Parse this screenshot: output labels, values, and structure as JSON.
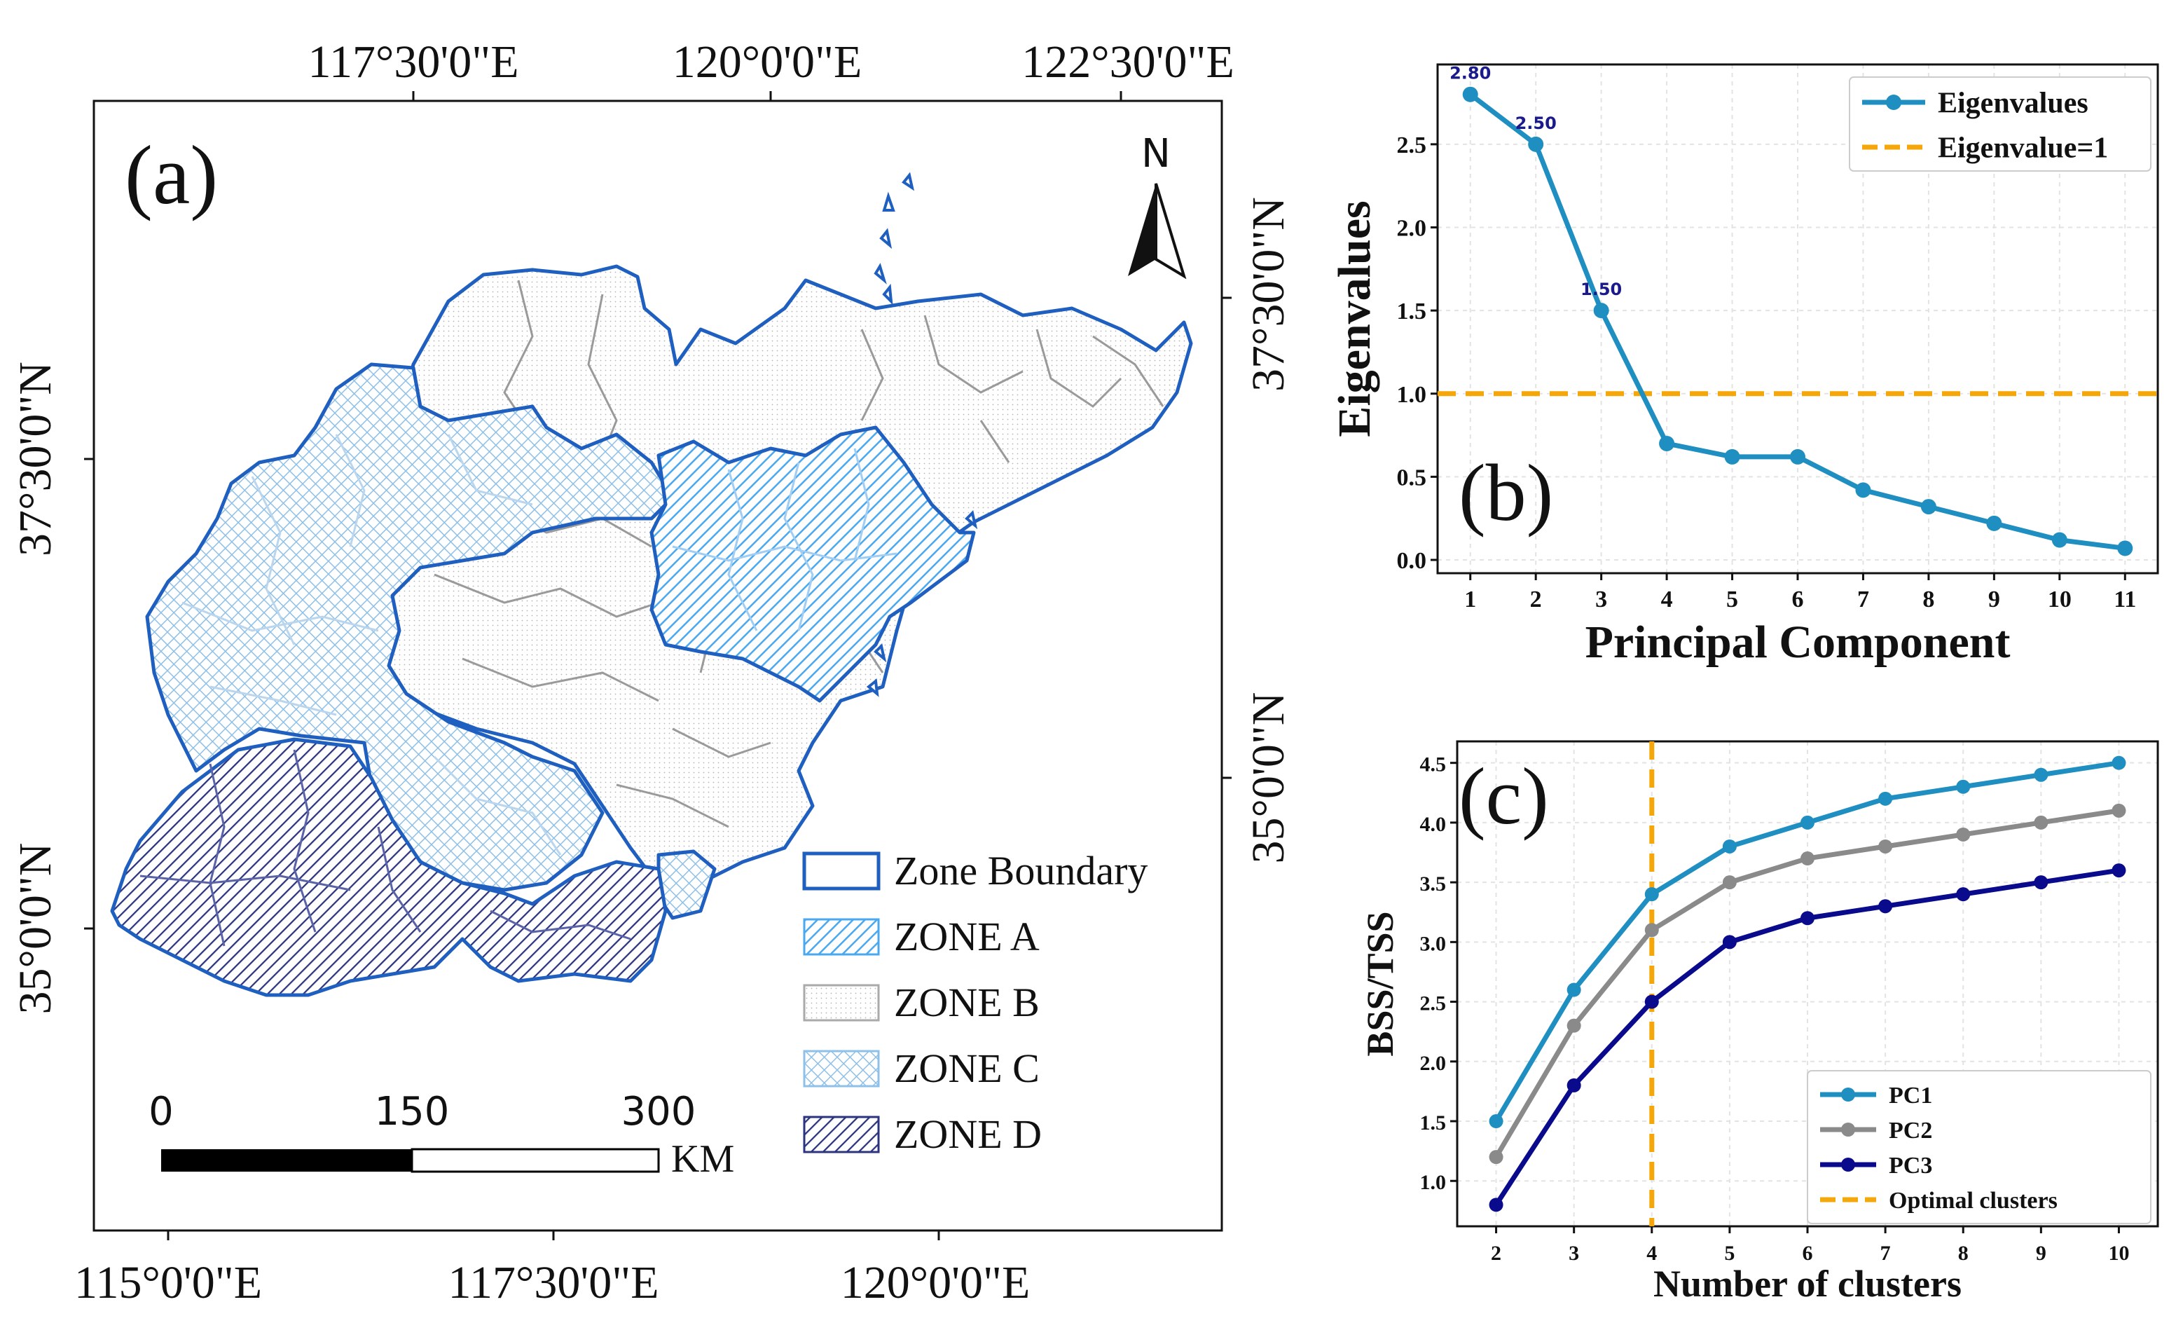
{
  "map_panel": {
    "panel_label": "(a)",
    "top_lon_labels": [
      "117°30'0\"E",
      "120°0'0\"E",
      "122°30'0\"E"
    ],
    "bottom_lon_labels": [
      "115°0'0\"E",
      "117°30'0\"E",
      "120°0'0\"E"
    ],
    "left_lat_labels": [
      "37°30'0\"N",
      "35°0'0\"N"
    ],
    "right_lat_labels": [
      "37°30'0\"N",
      "35°0'0\"N"
    ],
    "north_label": "N",
    "legend": {
      "boundary": "Zone Boundary",
      "zone_a": "ZONE A",
      "zone_b": "ZONE B",
      "zone_c": "ZONE C",
      "zone_d": "ZONE D"
    },
    "scale_bar": {
      "ticks": [
        "0",
        "150",
        "300"
      ],
      "unit": "KM"
    },
    "colors": {
      "boundary": "#1f5fbf",
      "zone_a": "#4aa8f0",
      "zone_b": "#aaaaaa",
      "zone_c": "#8fc0e8",
      "zone_d": "#2c3480"
    }
  },
  "chart_data": [
    {
      "type": "line",
      "panel_label": "(b)",
      "x": [
        1,
        2,
        3,
        4,
        5,
        6,
        7,
        8,
        9,
        10,
        11
      ],
      "series": [
        {
          "name": "Eigenvalues",
          "values": [
            2.8,
            2.5,
            1.5,
            0.7,
            0.62,
            0.62,
            0.42,
            0.32,
            0.22,
            0.12,
            0.07
          ],
          "color": "#1f8ec0"
        }
      ],
      "reference_line": {
        "name": "Eigenvalue=1",
        "value": 1.0,
        "color": "#f5a70a"
      },
      "point_labels": [
        "2.80",
        "2.50",
        "1.50"
      ],
      "xlabel": "Principal Component",
      "ylabel": "Eigenvalues",
      "xticks": [
        "1",
        "2",
        "3",
        "4",
        "5",
        "6",
        "7",
        "8",
        "9",
        "10",
        "11"
      ],
      "yticks": [
        "0.0",
        "0.5",
        "1.0",
        "1.5",
        "2.0",
        "2.5"
      ],
      "ylim": [
        -0.08,
        2.98
      ],
      "grid": true,
      "legend_position": "top-right"
    },
    {
      "type": "line",
      "panel_label": "(c)",
      "x": [
        2,
        3,
        4,
        5,
        6,
        7,
        8,
        9,
        10
      ],
      "series": [
        {
          "name": "PC1",
          "values": [
            1.5,
            2.6,
            3.4,
            3.8,
            4.0,
            4.2,
            4.3,
            4.4,
            4.5
          ],
          "color": "#1f8ec0"
        },
        {
          "name": "PC2",
          "values": [
            1.2,
            2.3,
            3.1,
            3.5,
            3.7,
            3.8,
            3.9,
            4.0,
            4.1
          ],
          "color": "#8a8a8a"
        },
        {
          "name": "PC3",
          "values": [
            0.8,
            1.8,
            2.5,
            3.0,
            3.2,
            3.3,
            3.4,
            3.5,
            3.6
          ],
          "color": "#0a0a8c"
        }
      ],
      "reference_vline": {
        "name": "Optimal clusters",
        "value": 4,
        "color": "#f5a70a"
      },
      "xlabel": "Number of clusters",
      "ylabel": "BSS/TSS",
      "xticks": [
        "2",
        "3",
        "4",
        "5",
        "6",
        "7",
        "8",
        "9",
        "10"
      ],
      "yticks": [
        "1.0",
        "1.5",
        "2.0",
        "2.5",
        "3.0",
        "3.5",
        "4.0",
        "4.5"
      ],
      "ylim": [
        0.62,
        4.68
      ],
      "grid": true,
      "legend_position": "bottom-right"
    }
  ]
}
